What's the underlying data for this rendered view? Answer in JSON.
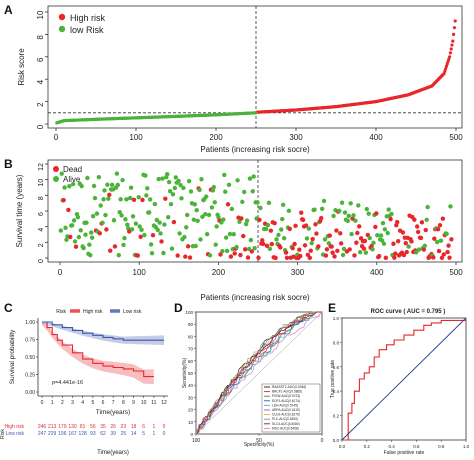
{
  "panels": {
    "A": {
      "label": "A",
      "chart_data": {
        "type": "scatter",
        "xlabel": "Patients (increasing risk socre)",
        "ylabel": "Risk score",
        "xlim": [
          0,
          500
        ],
        "ylim": [
          0,
          10
        ],
        "x_ticks": [
          0,
          100,
          200,
          300,
          400,
          500
        ],
        "y_ticks": [
          0,
          2,
          4,
          6,
          8,
          10
        ],
        "cutoff_patient": 250,
        "cutoff_score": 1.0,
        "legend_position": "top-left",
        "series": [
          {
            "name": "High risk",
            "color": "#e8262c",
            "x_range": [
              251,
              499
            ],
            "curve": [
              [
                251,
                1.05
              ],
              [
                300,
                1.25
              ],
              [
                350,
                1.55
              ],
              [
                400,
                2.0
              ],
              [
                440,
                2.6
              ],
              [
                470,
                3.4
              ],
              [
                485,
                4.5
              ],
              [
                492,
                6.0
              ],
              [
                496,
                7.4
              ],
              [
                499,
                9.2
              ]
            ]
          },
          {
            "name": "low Risk",
            "color": "#4bb33a",
            "x_range": [
              1,
              250
            ],
            "curve": [
              [
                1,
                0.1
              ],
              [
                10,
                0.3
              ],
              [
                50,
                0.42
              ],
              [
                100,
                0.55
              ],
              [
                150,
                0.68
              ],
              [
                200,
                0.82
              ],
              [
                250,
                1.0
              ]
            ]
          }
        ]
      }
    },
    "B": {
      "label": "B",
      "chart_data": {
        "type": "scatter",
        "xlabel": "Patients (increasing risk socre)",
        "ylabel": "Survival time (years)",
        "xlim": [
          0,
          500
        ],
        "ylim": [
          0,
          12
        ],
        "x_ticks": [
          0,
          100,
          200,
          300,
          400,
          500
        ],
        "y_ticks": [
          0,
          2,
          4,
          6,
          8,
          10,
          12
        ],
        "cutoff_patient": 250,
        "legend_position": "top-left",
        "series": [
          {
            "name": "Dead",
            "color": "#e8262c"
          },
          {
            "name": "Alive",
            "color": "#4bb33a"
          }
        ]
      }
    },
    "C": {
      "label": "C",
      "chart_data": {
        "type": "line",
        "xlabel": "Time(years)",
        "ylabel": "Survival probability",
        "xlim": [
          0,
          12
        ],
        "ylim": [
          0,
          1
        ],
        "x_ticks": [
          0,
          1,
          2,
          3,
          4,
          5,
          6,
          7,
          8,
          9,
          10,
          11,
          12
        ],
        "y_ticks": [
          0.0,
          0.25,
          0.5,
          0.75,
          1.0
        ],
        "y_tick_labels": [
          "0.00",
          "0.25",
          "0.50",
          "0.75",
          "1.00"
        ],
        "legend_title": "Risk",
        "pvalue_text": "p=4.441e-16",
        "series": [
          {
            "name": "High risk",
            "color": "#e8262c",
            "points": [
              [
                0,
                1.0
              ],
              [
                0.5,
                0.92
              ],
              [
                1,
                0.82
              ],
              [
                1.5,
                0.74
              ],
              [
                2,
                0.67
              ],
              [
                3,
                0.56
              ],
              [
                4,
                0.47
              ],
              [
                5,
                0.41
              ],
              [
                6,
                0.37
              ],
              [
                7,
                0.35
              ],
              [
                8,
                0.33
              ],
              [
                9,
                0.3
              ],
              [
                10,
                0.22
              ],
              [
                11,
                0.22
              ]
            ]
          },
          {
            "name": "Low risk",
            "color": "#3a57a8",
            "points": [
              [
                0,
                1.0
              ],
              [
                1,
                0.96
              ],
              [
                2,
                0.92
              ],
              [
                3,
                0.88
              ],
              [
                4,
                0.84
              ],
              [
                5,
                0.81
              ],
              [
                6,
                0.78
              ],
              [
                7,
                0.76
              ],
              [
                8,
                0.74
              ],
              [
                9,
                0.74
              ],
              [
                10,
                0.74
              ],
              [
                12,
                0.74
              ]
            ]
          }
        ],
        "risk_table": {
          "title": "Risk",
          "rows": [
            {
              "name": "High risk",
              "color": "#e8262c",
              "counts": [
                "246",
                "213",
                "170",
                "130",
                "81",
                "56",
                "35",
                "26",
                "23",
                "18",
                "6",
                "1",
                "0"
              ]
            },
            {
              "name": "Low risk",
              "color": "#3a57a8",
              "counts": [
                "247",
                "229",
                "196",
                "167",
                "128",
                "93",
                "62",
                "39",
                "25",
                "14",
                "5",
                "1",
                "0"
              ]
            }
          ]
        }
      }
    },
    "D": {
      "label": "D",
      "chart_data": {
        "type": "line",
        "xlabel": "Specificity(%)",
        "ylabel": "Sensitivity(%)",
        "xlim": [
          100,
          0
        ],
        "ylim": [
          0,
          100
        ],
        "x_ticks": [
          100,
          50,
          0
        ],
        "y_ticks": [
          0,
          10,
          20,
          30,
          40,
          50,
          60,
          70,
          80,
          90,
          100
        ],
        "legend_position": "bottom-right",
        "series": [
          {
            "name": "RAASST2-AUC(0.6346)",
            "color": "#1a1a1a"
          },
          {
            "name": "BRCF1-AUC(0.5865)",
            "color": "#e8262c"
          },
          {
            "name": "PIGW-AUC(0.5723)",
            "color": "#2e8b3d"
          },
          {
            "name": "EGF1-AUC(0.6174)",
            "color": "#3a57a8"
          },
          {
            "name": "LDH-AUC(0.5745)",
            "color": "#39b7c8"
          },
          {
            "name": "ARPA-AUC(0.6119)",
            "color": "#c040b8"
          },
          {
            "name": "CUL9-AUC(0.6275)",
            "color": "#c9b43a"
          },
          {
            "name": "PLC-AUC(0.6353)",
            "color": "#8a8a8a"
          },
          {
            "name": "SLC4-AUC(0.6080)",
            "color": "#8b1a1a"
          },
          {
            "name": "MSC-AUC(0.5458)",
            "color": "#e07bd0"
          }
        ]
      }
    },
    "E": {
      "label": "E",
      "chart_data": {
        "type": "line",
        "title": "ROC curve ( AUC = 0.795 )",
        "xlabel": "False positive rate",
        "ylabel": "True positive rate",
        "xlim": [
          0,
          1
        ],
        "ylim": [
          0,
          1
        ],
        "x_ticks": [
          0,
          0.2,
          0.4,
          0.6,
          0.8,
          1.0
        ],
        "y_ticks": [
          0,
          0.2,
          0.4,
          0.6,
          0.8,
          1.0
        ],
        "x_tick_labels": [
          "0.0",
          "0.2",
          "0.4",
          "0.6",
          "0.8",
          "1.0"
        ],
        "y_tick_labels": [
          "0.0",
          "0.2",
          "0.4",
          "0.6",
          "0.8",
          "1.0"
        ],
        "series": [
          {
            "name": "ROC",
            "color": "#e8262c",
            "points": [
              [
                0,
                0
              ],
              [
                0.05,
                0
              ],
              [
                0.05,
                0.22
              ],
              [
                0.08,
                0.22
              ],
              [
                0.08,
                0.3
              ],
              [
                0.1,
                0.3
              ],
              [
                0.1,
                0.4
              ],
              [
                0.14,
                0.4
              ],
              [
                0.14,
                0.5
              ],
              [
                0.18,
                0.5
              ],
              [
                0.18,
                0.55
              ],
              [
                0.22,
                0.55
              ],
              [
                0.22,
                0.6
              ],
              [
                0.26,
                0.6
              ],
              [
                0.26,
                0.68
              ],
              [
                0.3,
                0.68
              ],
              [
                0.3,
                0.74
              ],
              [
                0.36,
                0.74
              ],
              [
                0.36,
                0.78
              ],
              [
                0.42,
                0.78
              ],
              [
                0.42,
                0.82
              ],
              [
                0.5,
                0.82
              ],
              [
                0.5,
                0.86
              ],
              [
                0.58,
                0.86
              ],
              [
                0.58,
                0.9
              ],
              [
                0.66,
                0.9
              ],
              [
                0.66,
                0.94
              ],
              [
                0.72,
                0.94
              ],
              [
                0.72,
                0.96
              ],
              [
                0.8,
                0.96
              ],
              [
                0.8,
                0.98
              ],
              [
                1.0,
                0.98
              ]
            ]
          },
          {
            "name": "Diagonal",
            "color": "#2a3a8a",
            "points": [
              [
                0,
                0
              ],
              [
                1,
                1
              ]
            ]
          }
        ]
      }
    }
  }
}
